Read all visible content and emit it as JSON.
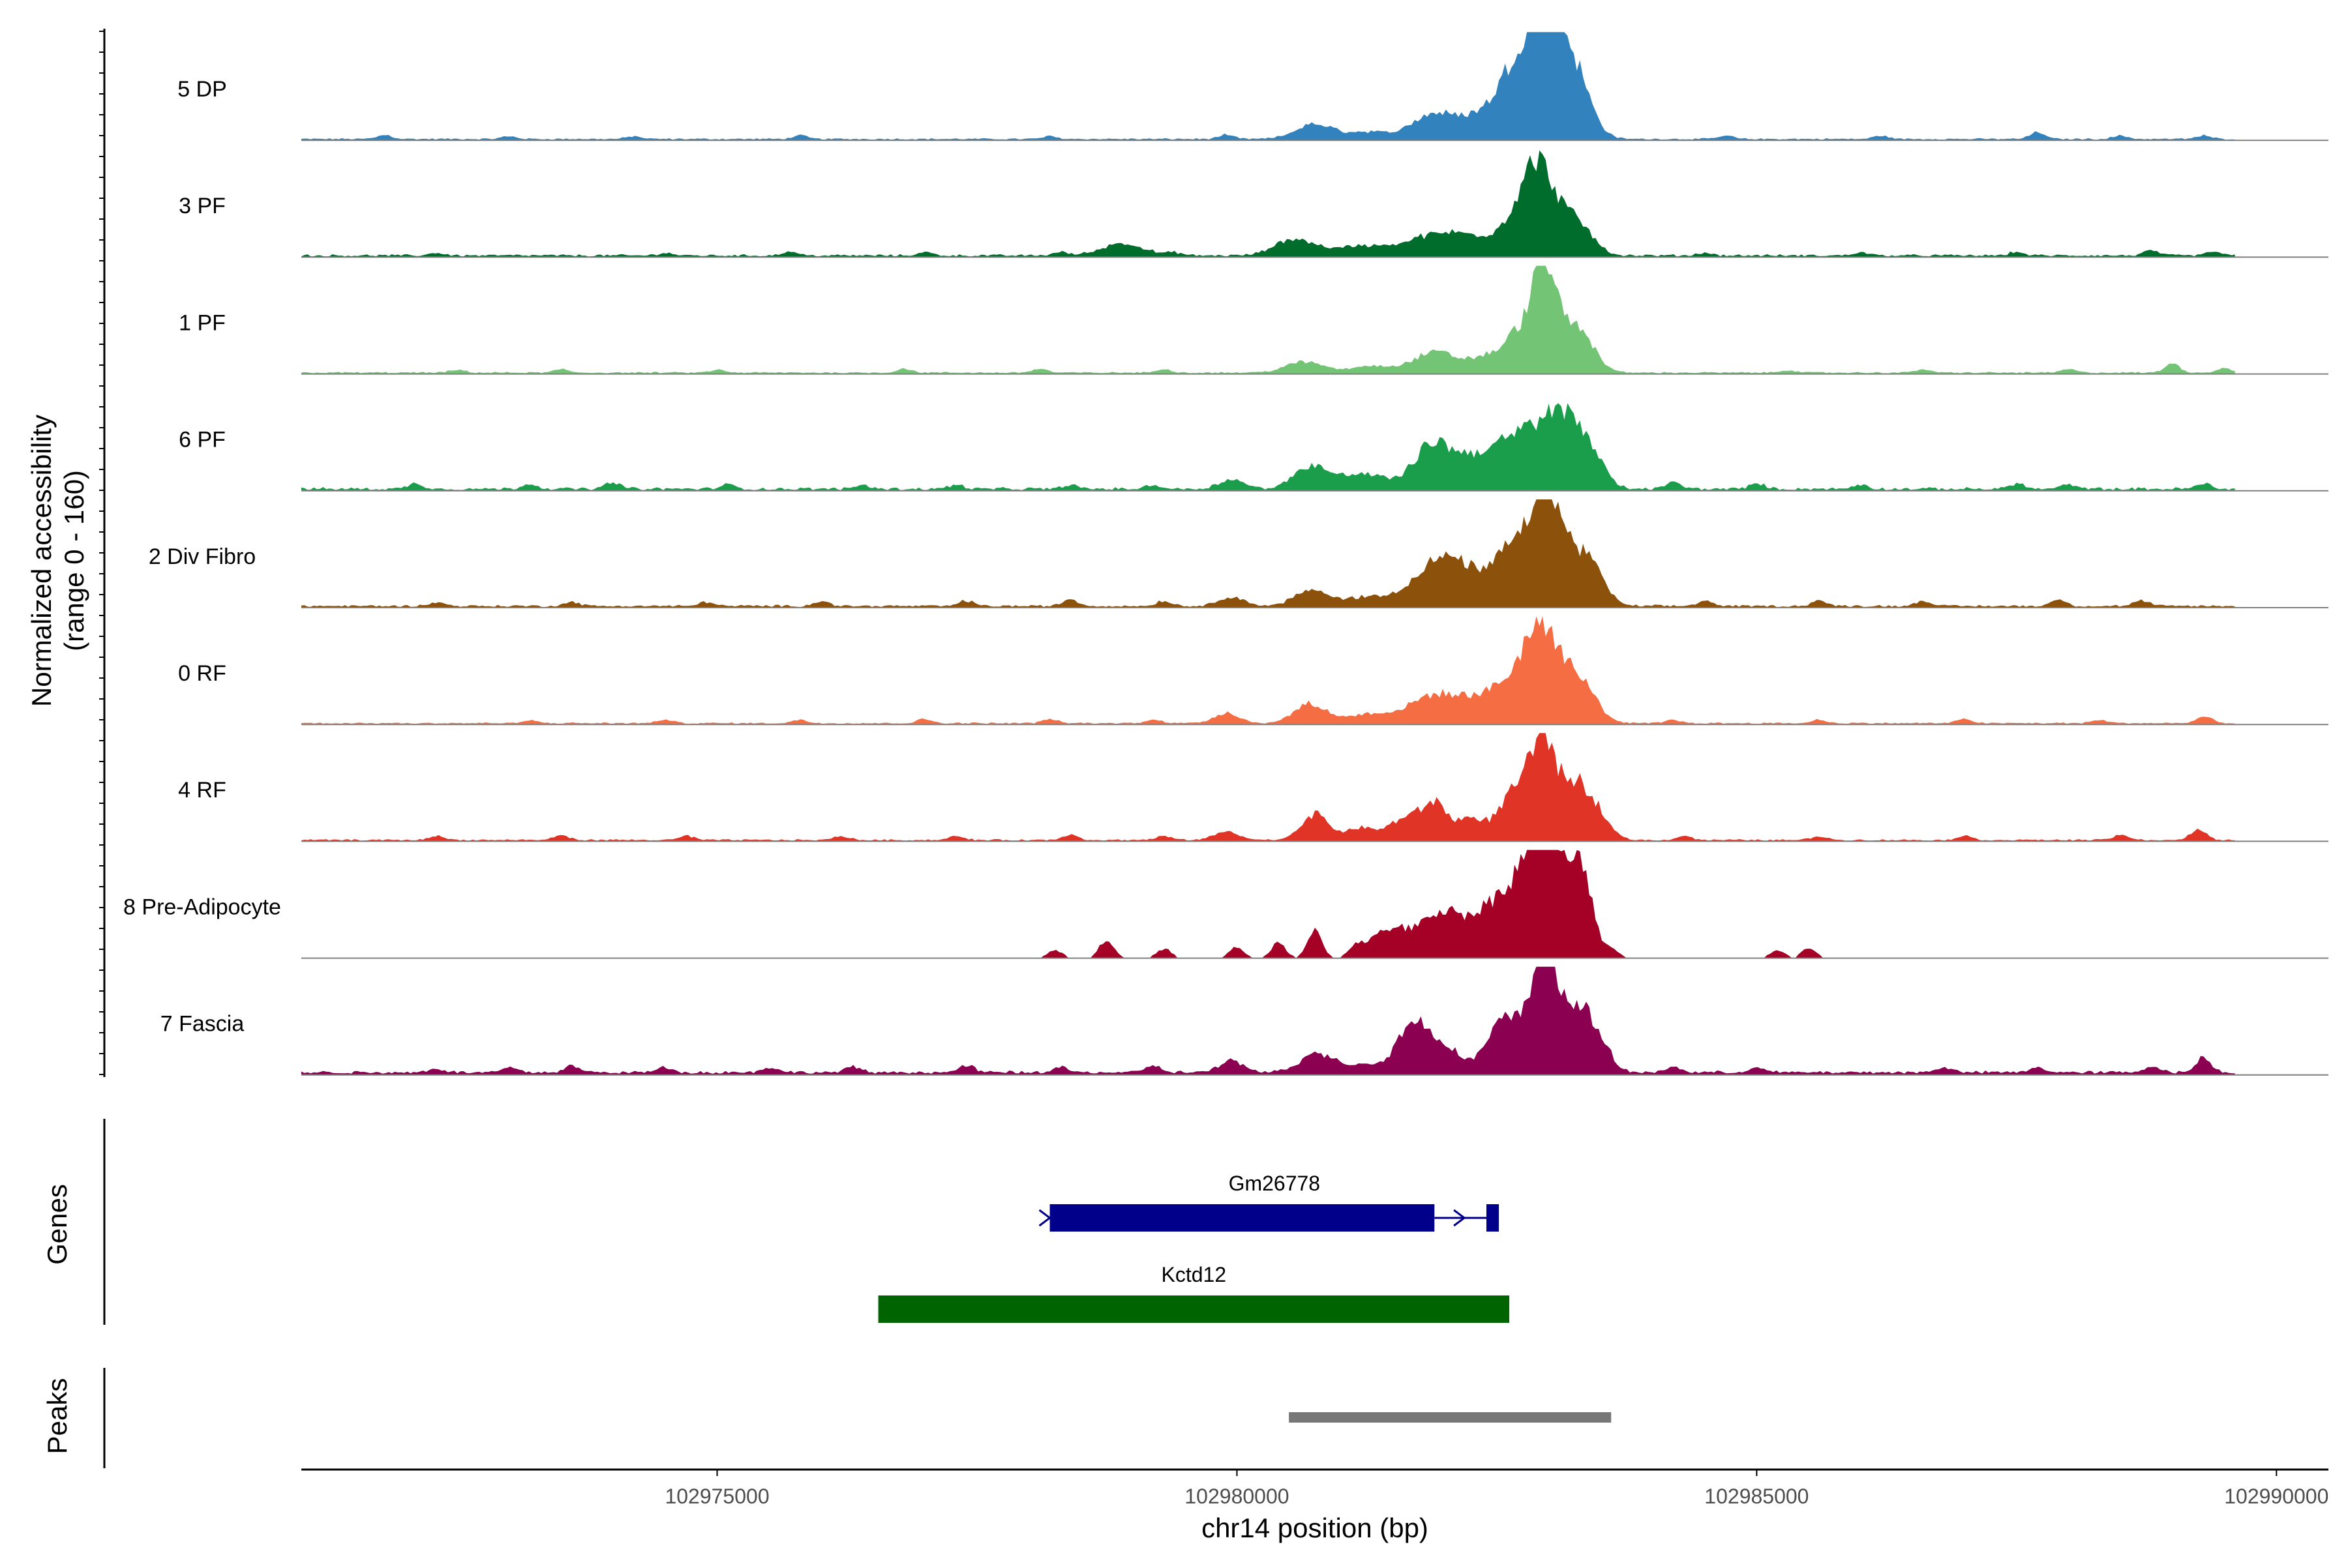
{
  "chart_data": {
    "type": "area",
    "title": "",
    "ylabel_line1": "Normalized accessibility",
    "ylabel_line2": "(range 0 - 160)",
    "ylim": [
      0,
      160
    ],
    "xlabel": "chr14 position (bp)",
    "xlim": [
      102971000,
      102990500
    ],
    "x_ticks": [
      102975000,
      102980000,
      102985000,
      102990000
    ],
    "x_tick_labels": [
      "102975000",
      "102980000",
      "102985000",
      "102990000"
    ],
    "region_start": 102971000,
    "region_end": 102989600,
    "tracks": [
      {
        "name": "5 DP",
        "color": "#3182bd",
        "background": [
          1,
          3
        ],
        "peaks": [
          [
            102980750,
            180,
            22
          ],
          [
            102981250,
            180,
            10
          ],
          [
            102981900,
            220,
            38
          ],
          [
            102982300,
            160,
            22
          ],
          [
            102982600,
            160,
            28
          ],
          [
            102982850,
            230,
            130
          ],
          [
            102983050,
            160,
            100
          ],
          [
            102983300,
            140,
            55
          ]
        ],
        "blips": [
          [
            102971800,
            6
          ],
          [
            102973000,
            4
          ],
          [
            102974200,
            4
          ],
          [
            102975800,
            5
          ],
          [
            102978200,
            4
          ],
          [
            102979900,
            6
          ],
          [
            102984700,
            5
          ],
          [
            102986200,
            5
          ],
          [
            102987700,
            10
          ],
          [
            102988500,
            5
          ],
          [
            102989300,
            5
          ]
        ]
      },
      {
        "name": "3 PF",
        "color": "#006d2c",
        "background": [
          1,
          4
        ],
        "peaks": [
          [
            102978900,
            200,
            18
          ],
          [
            102980550,
            180,
            24
          ],
          [
            102981200,
            300,
            14
          ],
          [
            102981900,
            250,
            28
          ],
          [
            102982300,
            200,
            22
          ],
          [
            102982700,
            160,
            50
          ],
          [
            102982900,
            140,
            105
          ],
          [
            102983150,
            160,
            45
          ],
          [
            102983350,
            130,
            22
          ]
        ],
        "blips": [
          [
            102972300,
            4
          ],
          [
            102974500,
            4
          ],
          [
            102975700,
            6
          ],
          [
            102977000,
            5
          ],
          [
            102978300,
            5
          ],
          [
            102979400,
            4
          ],
          [
            102984500,
            4
          ],
          [
            102986000,
            5
          ],
          [
            102987500,
            5
          ],
          [
            102988800,
            8
          ],
          [
            102989400,
            6
          ]
        ]
      },
      {
        "name": "1 PF",
        "color": "#74c476",
        "background": [
          1,
          3
        ],
        "peaks": [
          [
            102980650,
            180,
            16
          ],
          [
            102981300,
            200,
            10
          ],
          [
            102981900,
            200,
            30
          ],
          [
            102982400,
            180,
            22
          ],
          [
            102982750,
            150,
            60
          ],
          [
            102982950,
            90,
            115
          ],
          [
            102983100,
            170,
            65
          ],
          [
            102983350,
            130,
            35
          ]
        ],
        "blips": [
          [
            102972500,
            4
          ],
          [
            102973500,
            5
          ],
          [
            102975000,
            4
          ],
          [
            102976800,
            6
          ],
          [
            102978100,
            6
          ],
          [
            102979300,
            5
          ],
          [
            102985300,
            4
          ],
          [
            102986600,
            5
          ],
          [
            102988000,
            5
          ],
          [
            102989000,
            14
          ],
          [
            102989500,
            7
          ]
        ]
      },
      {
        "name": "6 PF",
        "color": "#1b9e4b",
        "background": [
          1,
          5
        ],
        "peaks": [
          [
            102979950,
            120,
            14
          ],
          [
            102980700,
            150,
            30
          ],
          [
            102981200,
            300,
            22
          ],
          [
            102981850,
            150,
            55
          ],
          [
            102982100,
            160,
            38
          ],
          [
            102982350,
            140,
            32
          ],
          [
            102982600,
            150,
            48
          ],
          [
            102982950,
            200,
            95
          ],
          [
            102983250,
            150,
            70
          ],
          [
            102983450,
            120,
            25
          ]
        ],
        "blips": [
          [
            102972100,
            8
          ],
          [
            102973200,
            8
          ],
          [
            102974000,
            10
          ],
          [
            102975100,
            6
          ],
          [
            102976400,
            6
          ],
          [
            102977300,
            6
          ],
          [
            102978400,
            6
          ],
          [
            102979200,
            6
          ],
          [
            102984200,
            10
          ],
          [
            102985000,
            8
          ],
          [
            102986000,
            6
          ],
          [
            102987500,
            8
          ],
          [
            102988000,
            6
          ],
          [
            102989300,
            8
          ]
        ]
      },
      {
        "name": "2 Div Fibro",
        "color": "#8c510a",
        "background": [
          1,
          4
        ],
        "peaks": [
          [
            102979950,
            120,
            14
          ],
          [
            102980700,
            150,
            22
          ],
          [
            102981300,
            300,
            14
          ],
          [
            102981900,
            200,
            60
          ],
          [
            102982200,
            160,
            40
          ],
          [
            102982650,
            180,
            90
          ],
          [
            102982950,
            110,
            170
          ],
          [
            102983200,
            150,
            85
          ],
          [
            102983450,
            120,
            40
          ]
        ],
        "blips": [
          [
            102972300,
            6
          ],
          [
            102973600,
            6
          ],
          [
            102974900,
            6
          ],
          [
            102976000,
            8
          ],
          [
            102977400,
            8
          ],
          [
            102978400,
            10
          ],
          [
            102979300,
            8
          ],
          [
            102984500,
            8
          ],
          [
            102985600,
            8
          ],
          [
            102986600,
            8
          ],
          [
            102987900,
            10
          ],
          [
            102988700,
            8
          ]
        ]
      },
      {
        "name": "0 RF",
        "color": "#f46d43",
        "background": [
          1,
          3
        ],
        "peaks": [
          [
            102979900,
            120,
            15
          ],
          [
            102980700,
            150,
            28
          ],
          [
            102981300,
            250,
            14
          ],
          [
            102981900,
            220,
            40
          ],
          [
            102982300,
            180,
            28
          ],
          [
            102982650,
            180,
            55
          ],
          [
            102982900,
            140,
            110
          ],
          [
            102983150,
            160,
            75
          ],
          [
            102983400,
            120,
            28
          ]
        ],
        "blips": [
          [
            102973200,
            4
          ],
          [
            102974500,
            5
          ],
          [
            102975800,
            5
          ],
          [
            102977000,
            6
          ],
          [
            102978200,
            6
          ],
          [
            102979200,
            6
          ],
          [
            102984200,
            5
          ],
          [
            102985600,
            5
          ],
          [
            102987000,
            6
          ],
          [
            102988300,
            5
          ],
          [
            102989300,
            10
          ]
        ]
      },
      {
        "name": "4 RF",
        "color": "#e03426",
        "background": [
          1,
          3
        ],
        "peaks": [
          [
            102979900,
            120,
            12
          ],
          [
            102980750,
            130,
            38
          ],
          [
            102981200,
            150,
            18
          ],
          [
            102981600,
            130,
            30
          ],
          [
            102981900,
            130,
            55
          ],
          [
            102982250,
            120,
            30
          ],
          [
            102982700,
            170,
            75
          ],
          [
            102982950,
            110,
            130
          ],
          [
            102983250,
            140,
            85
          ],
          [
            102983500,
            110,
            30
          ]
        ],
        "blips": [
          [
            102972300,
            6
          ],
          [
            102973500,
            7
          ],
          [
            102974700,
            6
          ],
          [
            102976200,
            6
          ],
          [
            102977300,
            6
          ],
          [
            102978400,
            8
          ],
          [
            102979300,
            6
          ],
          [
            102984300,
            6
          ],
          [
            102985600,
            6
          ],
          [
            102987000,
            6
          ],
          [
            102988500,
            8
          ],
          [
            102989250,
            16
          ]
        ]
      },
      {
        "name": "8 Pre-Adipocyte",
        "color": "#a50026",
        "background": [
          0,
          0
        ],
        "peaks": [
          [
            102981500,
            200,
            45
          ],
          [
            102981950,
            160,
            60
          ],
          [
            102982300,
            180,
            50
          ],
          [
            102982700,
            200,
            110
          ],
          [
            102982950,
            120,
            160
          ],
          [
            102983200,
            160,
            110
          ],
          [
            102983350,
            80,
            60
          ]
        ],
        "blips": [
          [
            102978250,
            12
          ],
          [
            102978750,
            28
          ],
          [
            102979300,
            14
          ],
          [
            102980000,
            16
          ],
          [
            102980400,
            22
          ],
          [
            102980750,
            40
          ],
          [
            102981150,
            14
          ],
          [
            102983600,
            12
          ],
          [
            102985200,
            12
          ],
          [
            102985500,
            14
          ]
        ]
      },
      {
        "name": "7 Fascia",
        "color": "#8c0052",
        "background": [
          2,
          6
        ],
        "peaks": [
          [
            102979950,
            120,
            16
          ],
          [
            102980750,
            150,
            26
          ],
          [
            102981200,
            250,
            12
          ],
          [
            102981700,
            150,
            70
          ],
          [
            102982000,
            150,
            35
          ],
          [
            102982600,
            180,
            80
          ],
          [
            102982950,
            110,
            170
          ],
          [
            102983250,
            150,
            100
          ],
          [
            102983500,
            110,
            30
          ]
        ],
        "blips": [
          [
            102972300,
            6
          ],
          [
            102973000,
            8
          ],
          [
            102973600,
            10
          ],
          [
            102974500,
            8
          ],
          [
            102975500,
            8
          ],
          [
            102976300,
            8
          ],
          [
            102977400,
            10
          ],
          [
            102978300,
            8
          ],
          [
            102979200,
            10
          ],
          [
            102984200,
            8
          ],
          [
            102985000,
            8
          ],
          [
            102986800,
            8
          ],
          [
            102987700,
            8
          ],
          [
            102988800,
            10
          ],
          [
            102989300,
            22
          ]
        ]
      }
    ],
    "genes_label": "Genes",
    "genes": [
      {
        "name": "Gm26778",
        "color": "#00008b",
        "exons": [
          [
            102978200,
            102981900
          ],
          [
            102982400,
            102982520
          ]
        ],
        "intron": [
          102981900,
          102982400
        ]
      },
      {
        "name": "Kctd12",
        "color": "#006400",
        "exons": [
          [
            102976550,
            102982620
          ]
        ],
        "intron": null
      }
    ],
    "peaks_label": "Peaks",
    "peak_regions": [
      [
        102980500,
        102983600
      ]
    ],
    "peak_color": "#777777"
  }
}
